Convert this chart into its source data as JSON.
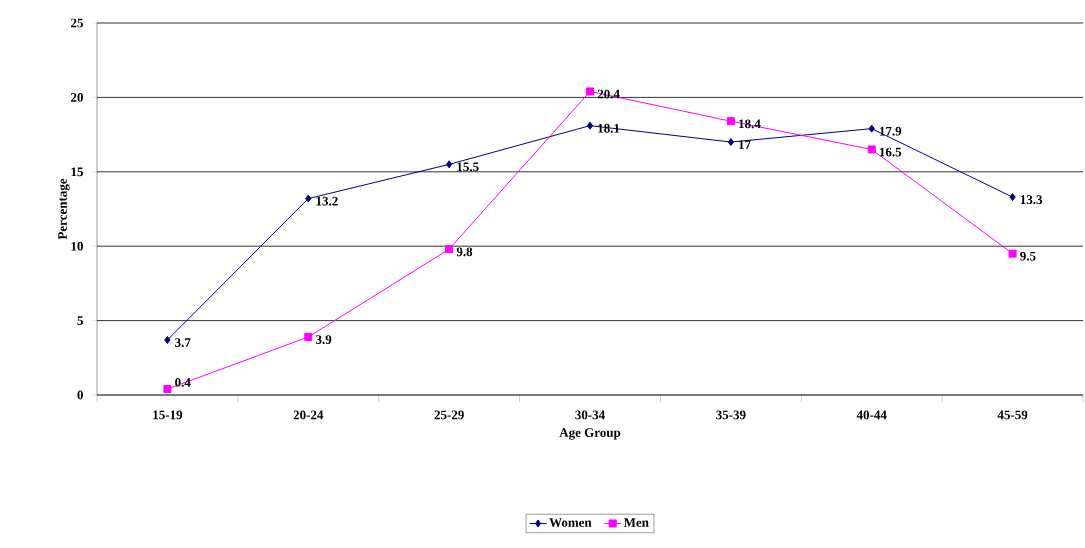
{
  "chart_data": {
    "type": "line",
    "xlabel": "Age Group",
    "ylabel": "Percentage",
    "categories": [
      "15-19",
      "20-24",
      "25-29",
      "30-34",
      "35-39",
      "40-44",
      "45-59"
    ],
    "series": [
      {
        "name": "Women",
        "color": "#000080",
        "marker": "diamond",
        "values": [
          3.7,
          13.2,
          15.5,
          18.1,
          17,
          17.9,
          13.3
        ]
      },
      {
        "name": "Men",
        "color": "#ff00ff",
        "marker": "square",
        "values": [
          0.4,
          3.9,
          9.8,
          20.4,
          18.4,
          16.5,
          9.5
        ]
      }
    ],
    "ylim": [
      0,
      25
    ],
    "yticks": [
      0,
      5,
      10,
      15,
      20,
      25
    ],
    "grid": "y",
    "legend": "bottom",
    "data_labels": true
  }
}
